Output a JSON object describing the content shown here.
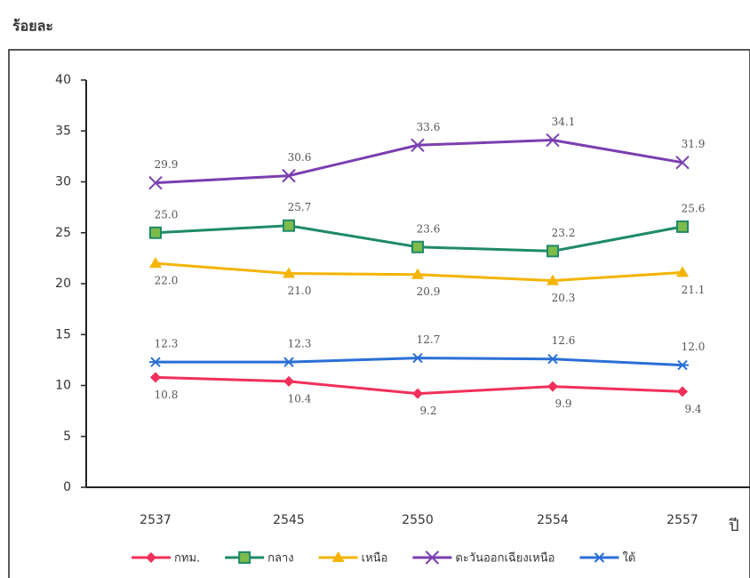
{
  "chart_data": {
    "type": "line",
    "y_label": "ร้อยละ",
    "x_label": "ปี",
    "categories": [
      "2537",
      "2545",
      "2550",
      "2554",
      "2557"
    ],
    "series": [
      {
        "name": "กทม.",
        "color": "#f0305a",
        "values": [
          10.8,
          10.4,
          9.2,
          9.9,
          9.4
        ],
        "value_labels": [
          "10.8",
          "10.4",
          "9.2",
          "9.9",
          "9.4"
        ]
      },
      {
        "name": "กลาง",
        "color": "#1f8a6a",
        "values": [
          25.0,
          25.7,
          23.6,
          23.2,
          25.6
        ],
        "value_labels": [
          "25.0",
          "25.7",
          "23.6",
          "23.2",
          "25.6"
        ]
      },
      {
        "name": "เหนือ",
        "color": "#f4b400",
        "values": [
          22.0,
          21.0,
          20.9,
          20.3,
          21.1
        ],
        "value_labels": [
          "22.0",
          "21.0",
          "20.9",
          "20.3",
          "21.1"
        ]
      },
      {
        "name": "ตะวันออกเฉียงเหนือ",
        "color": "#7a3fb0",
        "values": [
          29.9,
          30.6,
          33.6,
          34.1,
          31.9
        ],
        "value_labels": [
          "29.9",
          "30.6",
          "33.6",
          "34.1",
          "31.9"
        ]
      },
      {
        "name": "ใต้",
        "color": "#2a6fd6",
        "values": [
          12.3,
          12.3,
          12.7,
          12.6,
          12.0
        ],
        "value_labels": [
          "12.3",
          "12.3",
          "12.7",
          "12.6",
          "12.0"
        ]
      }
    ],
    "ylim": [
      0,
      40
    ],
    "yticks": [
      0,
      5,
      10,
      15,
      20,
      25,
      30,
      35,
      40
    ]
  }
}
